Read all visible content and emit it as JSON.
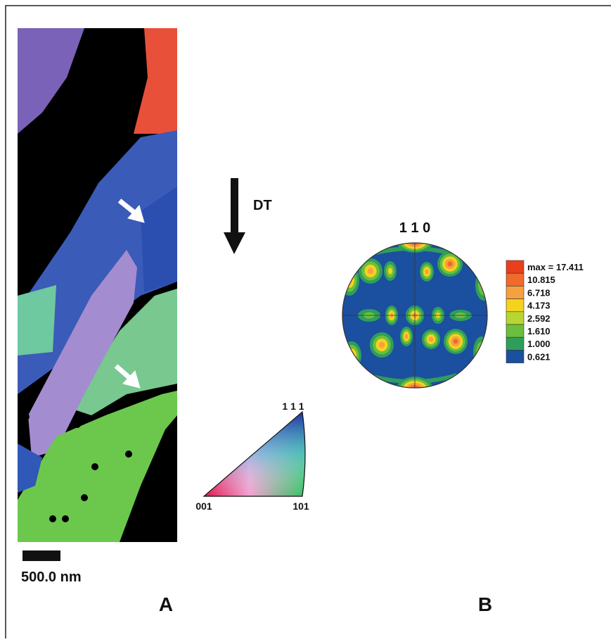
{
  "panel_a": {
    "direction_label": "DT",
    "scale_bar": "500.0 nm",
    "label": "A",
    "triangle": {
      "top": "1 1 1",
      "left": "001",
      "right": "101"
    }
  },
  "panel_b": {
    "pole": "1 1 0",
    "label": "B",
    "legend": [
      "max = 17.411",
      "10.815",
      "6.718",
      "4.173",
      "2.592",
      "1.610",
      "1.000",
      "0.621"
    ]
  }
}
